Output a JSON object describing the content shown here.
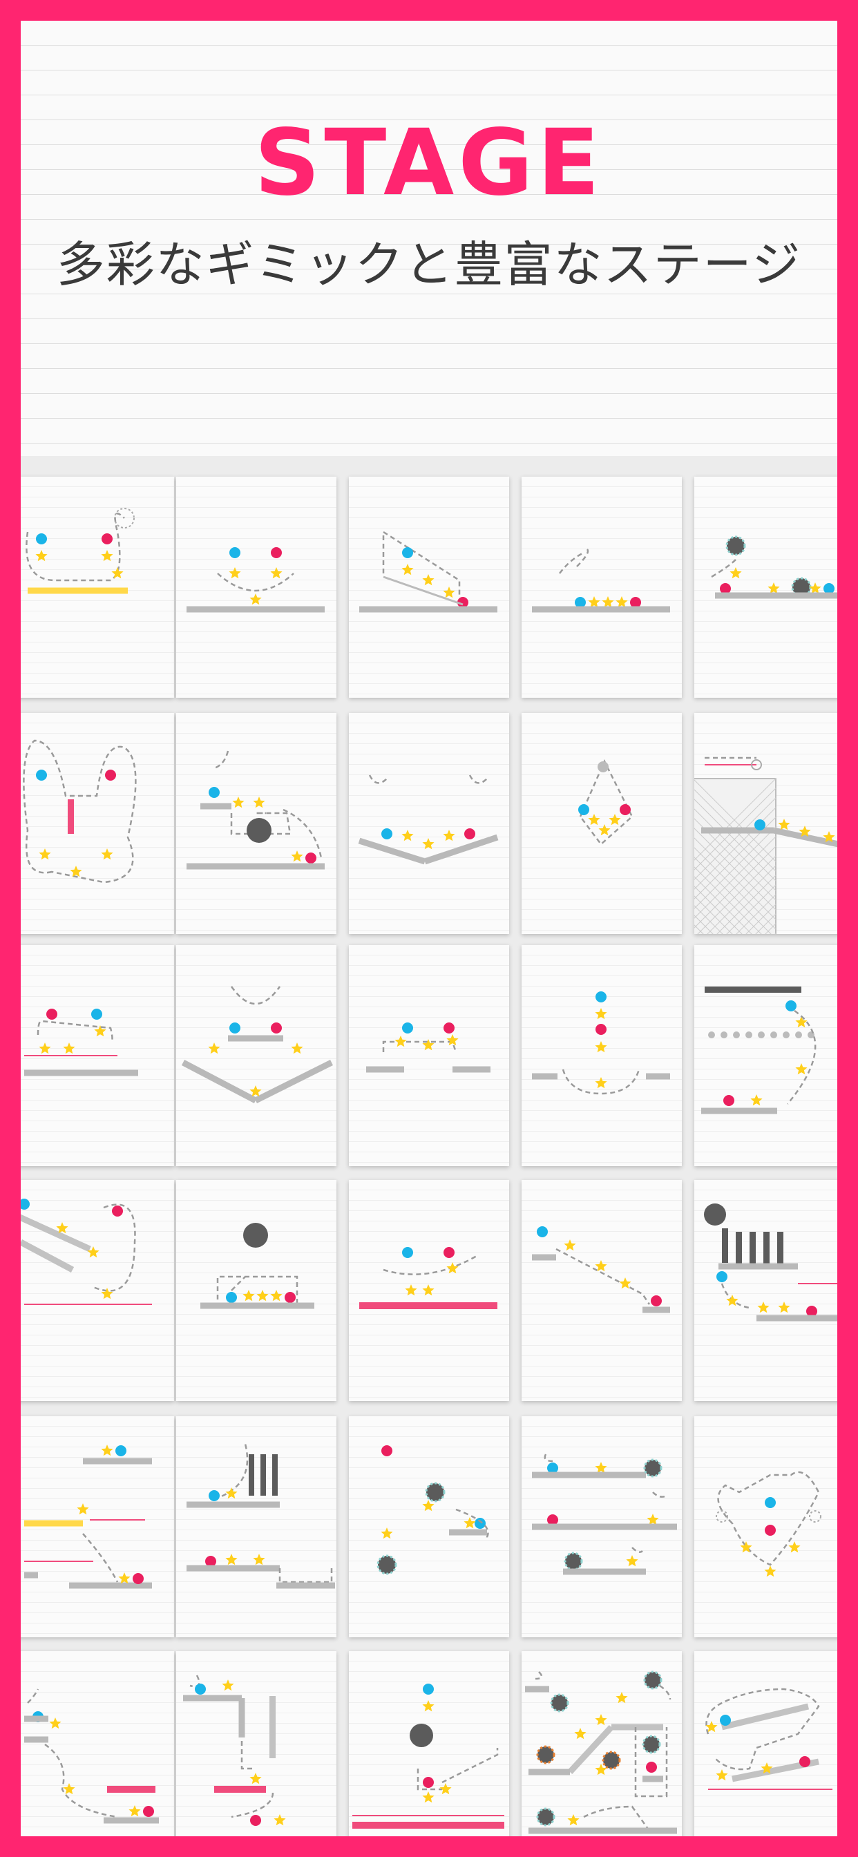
{
  "header": {
    "title": "STAGE",
    "subtitle": "多彩なギミックと豊富なステージ"
  },
  "colors": {
    "frame": "#ff2570",
    "title": "#ff2570",
    "subtitle": "#3a3a3a",
    "ball_blue": "#1ab4e8",
    "ball_pink": "#ea1f5e",
    "star": "#ffcf1a",
    "platform": "#b9b9b9",
    "pink_bar": "#f04b7c",
    "yellow_bar": "#ffd84a",
    "dark": "#5b5b5b"
  },
  "stages": {
    "grid_rows": 6,
    "grid_cols": 5,
    "icons": [
      "ball-blue-icon",
      "ball-pink-icon",
      "star-icon",
      "gear-icon",
      "platform",
      "dashed-line"
    ]
  }
}
